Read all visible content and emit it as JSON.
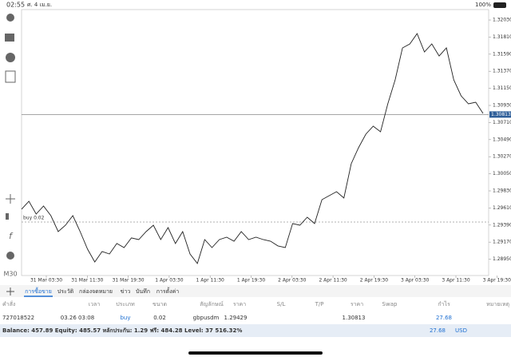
{
  "status_bar": {
    "time": "02:55",
    "date": "ศ. 4 เม.ย.",
    "battery": "100%"
  },
  "timeframe": "M30",
  "chart": {
    "type": "line",
    "color": "#222222",
    "values": [
      1.29594,
      1.29696,
      1.29532,
      1.29635,
      1.29511,
      1.29306,
      1.29388,
      1.29511,
      1.29306,
      1.2908,
      1.28915,
      1.29049,
      1.29018,
      1.29152,
      1.291,
      1.29224,
      1.29203,
      1.29306,
      1.29388,
      1.29203,
      1.29357,
      1.29152,
      1.29306,
      1.29018,
      1.28895,
      1.29203,
      1.291,
      1.29203,
      1.29234,
      1.29182,
      1.29306,
      1.29203,
      1.29234,
      1.29203,
      1.29182,
      1.29121,
      1.291,
      1.29409,
      1.29388,
      1.29491,
      1.29409,
      1.29717,
      1.29768,
      1.2982,
      1.29738,
      1.3018,
      1.30385,
      1.3056,
      1.30663,
      1.30591,
      1.30951,
      1.31259,
      1.3167,
      1.31722,
      1.31855,
      1.31619,
      1.31722,
      1.31567,
      1.3167,
      1.31259,
      1.31053,
      1.30951,
      1.30971,
      1.30827
    ],
    "ylim": [
      1.2874,
      1.32164
    ],
    "yticks": [
      {
        "value": 1.3203,
        "label": "1.32030"
      },
      {
        "value": 1.3181,
        "label": "1.31810"
      },
      {
        "value": 1.3159,
        "label": "1.31590"
      },
      {
        "value": 1.3137,
        "label": "1.31370"
      },
      {
        "value": 1.3115,
        "label": "1.31150"
      },
      {
        "value": 1.3093,
        "label": "1.30930"
      },
      {
        "value": 1.3071,
        "label": "1.30710"
      },
      {
        "value": 1.3049,
        "label": "1.30490"
      },
      {
        "value": 1.3027,
        "label": "1.30270"
      },
      {
        "value": 1.3005,
        "label": "1.30050"
      },
      {
        "value": 1.2983,
        "label": "1.29830"
      },
      {
        "value": 1.2961,
        "label": "1.29610"
      },
      {
        "value": 1.2939,
        "label": "1.29390"
      },
      {
        "value": 1.2917,
        "label": "1.29170"
      },
      {
        "value": 1.2895,
        "label": "1.28950"
      }
    ],
    "categories": [
      "31 Mar 03:30",
      "31 Mar 11:30",
      "31 Mar 19:30",
      "1 Apr 03:30",
      "1 Apr 11:30",
      "1 Apr 19:30",
      "2 Apr 03:30",
      "2 Apr 11:30",
      "2 Apr 19:30",
      "3 Apr 03:30",
      "3 Apr 11:30",
      "3 Apr 19:30"
    ],
    "current_price": 1.30813,
    "buy_line": {
      "label": "buy 0.02",
      "value": 1.29429
    }
  },
  "tabs": [
    "การซื้อขาย",
    "ประวัติ",
    "กล่องจดหมาย",
    "ข่าว",
    "บันทึก",
    "การตั้งค่า"
  ],
  "table": {
    "columns": [
      "คำสั่ง",
      "เวลา",
      "ประเภท",
      "ขนาด",
      "สัญลักษณ์",
      "ราคา",
      "S/L",
      "T/P",
      "ราคา",
      "Swap",
      "กำไร",
      "หมายเหตุ"
    ],
    "rows": [
      {
        "order": "727018522",
        "time": "03.26 03:08",
        "type": "buy",
        "volume": "0.02",
        "symbol": "gbpusdm",
        "open_price": "1.29429",
        "price": "1.30813",
        "profit": "27.68"
      }
    ]
  },
  "footer": {
    "summary": "Balance: 457.89 Equity: 485.57 หลักประกัน: 1.29 ฟรี: 484.28 Level: 37 516.32%",
    "profit": "27.68",
    "currency": "USD"
  }
}
